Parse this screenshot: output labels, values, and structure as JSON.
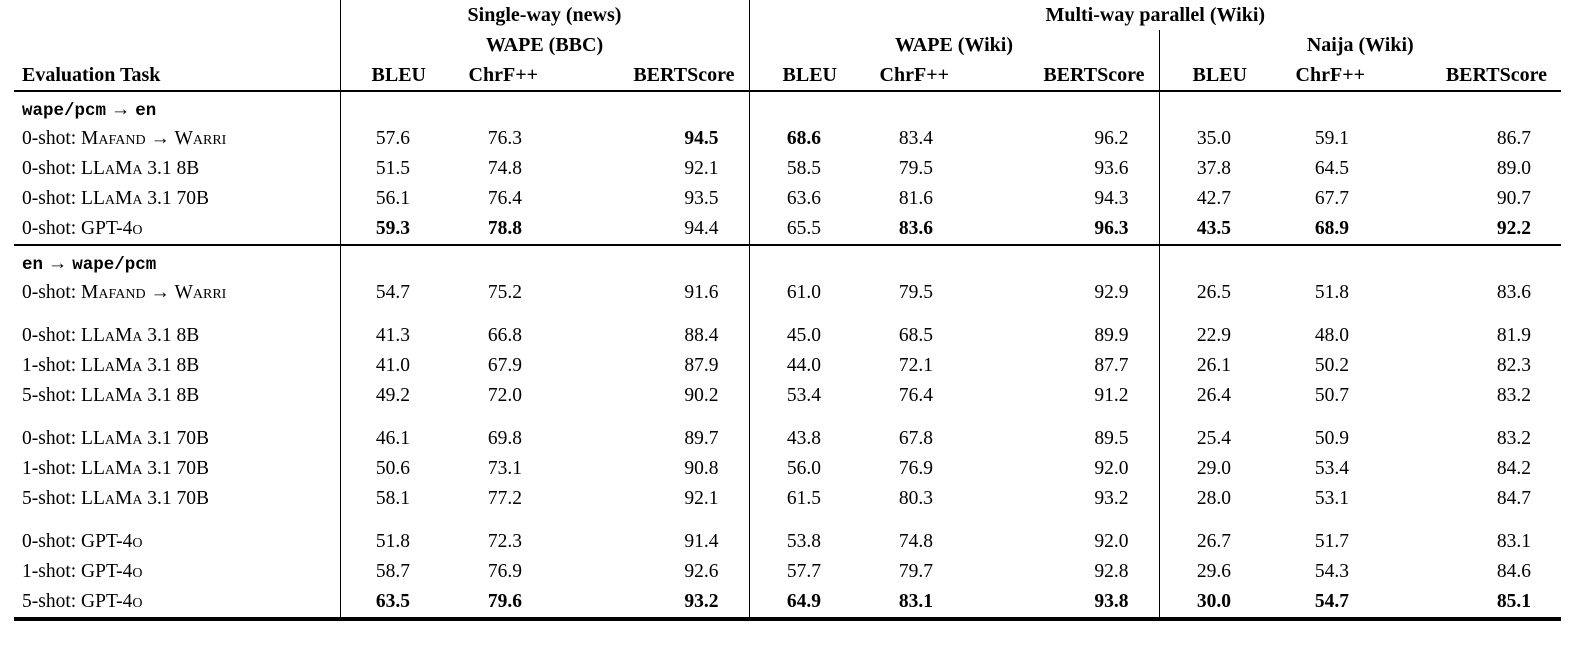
{
  "page": {
    "background": "#ffffff",
    "text_color": "#000000"
  },
  "table": {
    "task_header": "Evaluation Task",
    "top_groups": [
      {
        "label": "Single-way (news)",
        "colspan": 3
      },
      {
        "label": "Multi-way parallel (Wiki)",
        "colspan": 6
      }
    ],
    "sub_groups": [
      {
        "label": "WAPE (BBC)",
        "colspan": 3
      },
      {
        "label": "WAPE (Wiki)",
        "colspan": 3
      },
      {
        "label": "Naija (Wiki)",
        "colspan": 3
      }
    ],
    "metric_headers": [
      "BLEU",
      "ChrF++",
      "BERTScore",
      "BLEU",
      "ChrF++",
      "BERTScore",
      "BLEU",
      "ChrF++",
      "BERTScore"
    ],
    "sections": [
      {
        "title": {
          "from": "wape/pcm",
          "arrow": "→",
          "to": "en"
        },
        "groups": [
          {
            "rows": [
              {
                "shot": "0-shot:",
                "model": "Mafand → Warri",
                "values": [
                  "57.6",
                  "76.3",
                  "94.5",
                  "68.6",
                  "83.4",
                  "96.2",
                  "35.0",
                  "59.1",
                  "86.7"
                ],
                "bold": [
                  0,
                  0,
                  1,
                  1,
                  0,
                  0,
                  0,
                  0,
                  0
                ]
              },
              {
                "shot": "0-shot:",
                "model": "LLaMa 3.1 8B",
                "values": [
                  "51.5",
                  "74.8",
                  "92.1",
                  "58.5",
                  "79.5",
                  "93.6",
                  "37.8",
                  "64.5",
                  "89.0"
                ],
                "bold": [
                  0,
                  0,
                  0,
                  0,
                  0,
                  0,
                  0,
                  0,
                  0
                ]
              },
              {
                "shot": "0-shot:",
                "model": "LLaMa 3.1 70B",
                "values": [
                  "56.1",
                  "76.4",
                  "93.5",
                  "63.6",
                  "81.6",
                  "94.3",
                  "42.7",
                  "67.7",
                  "90.7"
                ],
                "bold": [
                  0,
                  0,
                  0,
                  0,
                  0,
                  0,
                  0,
                  0,
                  0
                ]
              },
              {
                "shot": "0-shot:",
                "model": "GPT-4o",
                "values": [
                  "59.3",
                  "78.8",
                  "94.4",
                  "65.5",
                  "83.6",
                  "96.3",
                  "43.5",
                  "68.9",
                  "92.2"
                ],
                "bold": [
                  1,
                  1,
                  0,
                  0,
                  1,
                  1,
                  1,
                  1,
                  1
                ]
              }
            ]
          }
        ]
      },
      {
        "title": {
          "from": "en",
          "arrow": "→",
          "to": "wape/pcm"
        },
        "groups": [
          {
            "rows": [
              {
                "shot": "0-shot:",
                "model": "Mafand → Warri",
                "values": [
                  "54.7",
                  "75.2",
                  "91.6",
                  "61.0",
                  "79.5",
                  "92.9",
                  "26.5",
                  "51.8",
                  "83.6"
                ],
                "bold": [
                  0,
                  0,
                  0,
                  0,
                  0,
                  0,
                  0,
                  0,
                  0
                ]
              }
            ]
          },
          {
            "rows": [
              {
                "shot": "0-shot:",
                "model": "LLaMa 3.1 8B",
                "values": [
                  "41.3",
                  "66.8",
                  "88.4",
                  "45.0",
                  "68.5",
                  "89.9",
                  "22.9",
                  "48.0",
                  "81.9"
                ],
                "bold": [
                  0,
                  0,
                  0,
                  0,
                  0,
                  0,
                  0,
                  0,
                  0
                ]
              },
              {
                "shot": "1-shot:",
                "model": "LLaMa 3.1 8B",
                "values": [
                  "41.0",
                  "67.9",
                  "87.9",
                  "44.0",
                  "72.1",
                  "87.7",
                  "26.1",
                  "50.2",
                  "82.3"
                ],
                "bold": [
                  0,
                  0,
                  0,
                  0,
                  0,
                  0,
                  0,
                  0,
                  0
                ]
              },
              {
                "shot": "5-shot:",
                "model": "LLaMa 3.1 8B",
                "values": [
                  "49.2",
                  "72.0",
                  "90.2",
                  "53.4",
                  "76.4",
                  "91.2",
                  "26.4",
                  "50.7",
                  "83.2"
                ],
                "bold": [
                  0,
                  0,
                  0,
                  0,
                  0,
                  0,
                  0,
                  0,
                  0
                ]
              }
            ]
          },
          {
            "rows": [
              {
                "shot": "0-shot:",
                "model": "LLaMa 3.1 70B",
                "values": [
                  "46.1",
                  "69.8",
                  "89.7",
                  "43.8",
                  "67.8",
                  "89.5",
                  "25.4",
                  "50.9",
                  "83.2"
                ],
                "bold": [
                  0,
                  0,
                  0,
                  0,
                  0,
                  0,
                  0,
                  0,
                  0
                ]
              },
              {
                "shot": "1-shot:",
                "model": "LLaMa 3.1 70B",
                "values": [
                  "50.6",
                  "73.1",
                  "90.8",
                  "56.0",
                  "76.9",
                  "92.0",
                  "29.0",
                  "53.4",
                  "84.2"
                ],
                "bold": [
                  0,
                  0,
                  0,
                  0,
                  0,
                  0,
                  0,
                  0,
                  0
                ]
              },
              {
                "shot": "5-shot:",
                "model": "LLaMa 3.1 70B",
                "values": [
                  "58.1",
                  "77.2",
                  "92.1",
                  "61.5",
                  "80.3",
                  "93.2",
                  "28.0",
                  "53.1",
                  "84.7"
                ],
                "bold": [
                  0,
                  0,
                  0,
                  0,
                  0,
                  0,
                  0,
                  0,
                  0
                ]
              }
            ]
          },
          {
            "rows": [
              {
                "shot": "0-shot:",
                "model": "GPT-4o",
                "values": [
                  "51.8",
                  "72.3",
                  "91.4",
                  "53.8",
                  "74.8",
                  "92.0",
                  "26.7",
                  "51.7",
                  "83.1"
                ],
                "bold": [
                  0,
                  0,
                  0,
                  0,
                  0,
                  0,
                  0,
                  0,
                  0
                ]
              },
              {
                "shot": "1-shot:",
                "model": "GPT-4o",
                "values": [
                  "58.7",
                  "76.9",
                  "92.6",
                  "57.7",
                  "79.7",
                  "92.8",
                  "29.6",
                  "54.3",
                  "84.6"
                ],
                "bold": [
                  0,
                  0,
                  0,
                  0,
                  0,
                  0,
                  0,
                  0,
                  0
                ]
              },
              {
                "shot": "5-shot:",
                "model": "GPT-4o",
                "values": [
                  "63.5",
                  "79.6",
                  "93.2",
                  "64.9",
                  "83.1",
                  "93.8",
                  "30.0",
                  "54.7",
                  "85.1"
                ],
                "bold": [
                  1,
                  1,
                  1,
                  1,
                  1,
                  1,
                  1,
                  1,
                  1
                ]
              }
            ]
          }
        ]
      }
    ]
  }
}
